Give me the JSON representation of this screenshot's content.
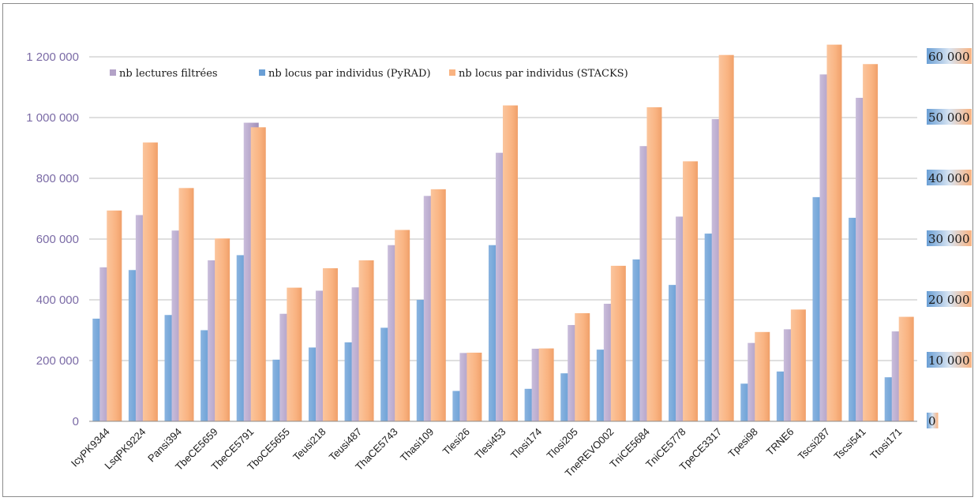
{
  "chart_data": {
    "type": "bar",
    "categories": [
      "IcyPK9344",
      "LsqPK9224",
      "Pansi394",
      "TbeCE5659",
      "TbeCE5791",
      "TboCE5655",
      "Teusi218",
      "Teusi487",
      "ThaCE5743",
      "Thasi109",
      "Tlesi26",
      "Tlesi453",
      "Tlosi174",
      "Tlosi205",
      "TneREVO002",
      "TniCE5684",
      "TniCE5778",
      "TpeCE3317",
      "Tpesi98",
      "TRNE6",
      "Tscsi287",
      "Tscsi541",
      "Ttosi171"
    ],
    "series": [
      {
        "name": "nb lectures filtrées",
        "axis": "left",
        "color": "#b3a2c7",
        "values": [
          507000,
          679000,
          628000,
          530000,
          983000,
          354000,
          430000,
          441000,
          580000,
          742000,
          225000,
          884000,
          239000,
          317000,
          387000,
          906000,
          674000,
          995000,
          258000,
          303000,
          1142000,
          1065000,
          296000
        ]
      },
      {
        "name": "nb locus par individus (PyRAD)",
        "axis": "left",
        "color": "#6a9fd5",
        "values": [
          338000,
          498000,
          350000,
          300000,
          547000,
          203000,
          243000,
          260000,
          308000,
          400000,
          100000,
          580000,
          107000,
          158000,
          236000,
          533000,
          449000,
          618000,
          124000,
          164000,
          738000,
          670000,
          145000
        ]
      },
      {
        "name": "nb locus par individus (STACKS)",
        "axis": "right",
        "color": "#f9b381",
        "values": [
          34700,
          45900,
          38400,
          30100,
          48400,
          22000,
          25200,
          26500,
          31500,
          38200,
          11300,
          52000,
          12000,
          17800,
          25600,
          51700,
          42800,
          60300,
          14700,
          18400,
          62000,
          58800,
          17200
        ]
      }
    ],
    "y_left": {
      "min": 0,
      "max": 1200000,
      "ticks": [
        "0",
        "200 000",
        "400 000",
        "600 000",
        "800 000",
        "1 000 000",
        "1 200 000"
      ]
    },
    "y_right": {
      "min": 0,
      "max": 60000,
      "ticks": [
        "0",
        "10 000",
        "20 000",
        "30 000",
        "40 000",
        "50 000",
        "60 000"
      ]
    },
    "legend_position": "top-left",
    "grid": true
  },
  "colors": {
    "lectures": "#b3a2c7",
    "pyrad": "#6a9fd5",
    "stacks": "#f9b381",
    "grid": "#bfbfbf"
  }
}
